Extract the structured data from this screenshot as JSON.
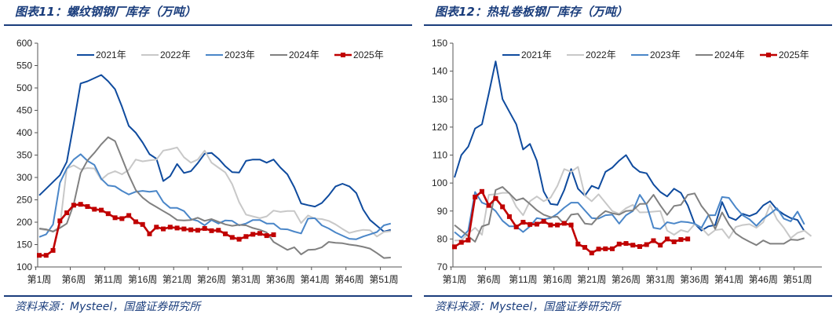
{
  "source": "资料来源：Mysteel，国盛证券研究所",
  "chart_data": [
    {
      "type": "line",
      "title": "图表11：螺纹钢钢厂库存（万吨）",
      "xlabel": "",
      "ylabel": "",
      "ylim": [
        100,
        600
      ],
      "yticks": [
        100,
        150,
        200,
        250,
        300,
        350,
        400,
        450,
        500,
        550,
        600
      ],
      "xtick_labels": [
        "第1周",
        "第6周",
        "第11周",
        "第16周",
        "第21周",
        "第26周",
        "第31周",
        "第36周",
        "第41周",
        "第46周",
        "第51周"
      ],
      "x_weeks": 53,
      "legend_position": "top",
      "series": [
        {
          "name": "2021年",
          "color": "#0f4b9e",
          "marker": false,
          "values": [
            260,
            275,
            290,
            305,
            335,
            420,
            510,
            515,
            522,
            529,
            515,
            497,
            458,
            415,
            400,
            378,
            352,
            342,
            292,
            303,
            330,
            310,
            314,
            332,
            353,
            355,
            342,
            325,
            312,
            311,
            337,
            340,
            340,
            333,
            340,
            322,
            307,
            278,
            242,
            238,
            235,
            243,
            260,
            280,
            286,
            280,
            265,
            228,
            205,
            192,
            179,
            183
          ]
        },
        {
          "name": "2022年",
          "color": "#c8c8c8",
          "marker": false,
          "values": [
            185,
            182,
            180,
            190,
            320,
            327,
            318,
            321,
            320,
            295,
            308,
            314,
            307,
            317,
            340,
            336,
            338,
            340,
            360,
            363,
            367,
            345,
            333,
            340,
            360,
            333,
            322,
            311,
            285,
            245,
            217,
            213,
            209,
            213,
            226,
            223,
            225,
            225,
            198,
            215,
            208,
            207,
            203,
            195,
            185,
            176,
            180,
            183,
            182,
            168,
            178,
            180
          ]
        },
        {
          "name": "2023年",
          "color": "#4a86c8",
          "marker": false,
          "values": [
            167,
            173,
            195,
            288,
            320,
            340,
            352,
            337,
            328,
            297,
            282,
            280,
            270,
            262,
            268,
            270,
            268,
            270,
            245,
            232,
            232,
            225,
            207,
            203,
            193,
            205,
            197,
            204,
            203,
            193,
            197,
            205,
            205,
            197,
            197,
            185,
            184,
            179,
            175,
            208,
            209,
            193,
            186,
            177,
            170,
            163,
            162,
            168,
            173,
            178,
            193,
            197
          ]
        },
        {
          "name": "2024年",
          "color": "#808080",
          "marker": false,
          "values": [
            186,
            184,
            179,
            187,
            197,
            240,
            310,
            338,
            355,
            374,
            390,
            381,
            343,
            305,
            272,
            255,
            243,
            234,
            225,
            216,
            205,
            204,
            205,
            210,
            203,
            207,
            201,
            195,
            192,
            194,
            193,
            187,
            183,
            177,
            156,
            147,
            138,
            144,
            128,
            138,
            139,
            144,
            156,
            154,
            153,
            150,
            148,
            145,
            141,
            131,
            120,
            121
          ]
        },
        {
          "name": "2025年",
          "color": "#c00000",
          "marker": true,
          "values": [
            126,
            126,
            137,
            203,
            221,
            238,
            240,
            235,
            229,
            227,
            219,
            210,
            208,
            215,
            201,
            195,
            174,
            189,
            185,
            189,
            187,
            185,
            183,
            182,
            186,
            181,
            182,
            174,
            166,
            162,
            168,
            173,
            175,
            170,
            172
          ]
        }
      ]
    },
    {
      "type": "line",
      "title": "图表12：热轧卷板钢厂库存（万吨）",
      "xlabel": "",
      "ylabel": "",
      "ylim": [
        70,
        150
      ],
      "yticks": [
        70,
        80,
        90,
        100,
        110,
        120,
        130,
        140,
        150
      ],
      "xtick_labels": [
        "第1周",
        "第6周",
        "第11周",
        "第16周",
        "第21周",
        "第26周",
        "第31周",
        "第36周",
        "第41周",
        "第46周",
        "第51周"
      ],
      "x_weeks": 53,
      "legend_position": "top",
      "series": [
        {
          "name": "2021年",
          "color": "#0f4b9e",
          "marker": false,
          "values": [
            102,
            110,
            113,
            119.5,
            121,
            132,
            143.5,
            130,
            125.5,
            121,
            112,
            114,
            108,
            97,
            92.5,
            92.2,
            97.5,
            105,
            98,
            95.5,
            99,
            98,
            104,
            105.5,
            108,
            110,
            106,
            104,
            103.5,
            99.5,
            96.8,
            95.2,
            98,
            96.5,
            92,
            85.5,
            83,
            84.5,
            85,
            93.2,
            87.8,
            86.8,
            89,
            88.2,
            89.2,
            92,
            93.5,
            90.5,
            88.8,
            87.5,
            86.8,
            82.8
          ]
        },
        {
          "name": "2022年",
          "color": "#c8c8c8",
          "marker": false,
          "values": [
            79.5,
            79.5,
            82,
            84,
            81.5,
            95.8,
            96,
            96.5,
            96.5,
            91.5,
            88.5,
            93.5,
            95.2,
            93.5,
            94.8,
            99,
            105,
            104,
            105.8,
            95.5,
            93.5,
            96,
            93,
            90,
            89,
            91,
            92.2,
            89.5,
            89.6,
            89.8,
            90,
            83,
            81.5,
            83.2,
            82.5,
            85.3,
            84,
            81.3,
            83.2,
            83.5,
            80.3,
            84.3,
            85,
            85.3,
            84,
            86,
            92.2,
            87,
            84,
            80.3,
            82.2,
            83,
            81
          ]
        },
        {
          "name": "2023年",
          "color": "#4a86c8",
          "marker": false,
          "values": [
            82.5,
            80.5,
            83,
            96.8,
            93,
            92,
            90,
            86.5,
            84.5,
            84.5,
            82.5,
            84.5,
            87.5,
            87,
            87.5,
            89,
            91.2,
            93,
            93,
            90.2,
            87.5,
            87.3,
            88.5,
            88.7,
            85.5,
            88.5,
            90,
            95.8,
            92.2,
            84,
            83.6,
            86,
            85.5,
            86.2,
            86,
            85.5,
            84,
            88.5,
            88.5,
            95,
            94.7,
            91.3,
            88.5,
            87,
            84.7,
            87.3,
            89,
            91,
            87.3,
            86.3,
            89.8,
            85.2
          ]
        },
        {
          "name": "2024年",
          "color": "#808080",
          "marker": false,
          "values": [
            85,
            83,
            81,
            79,
            84.5,
            85.3,
            97.5,
            98.6,
            96.3,
            93.8,
            94.6,
            92.5,
            90.3,
            88.7,
            87.8,
            88,
            85.3,
            88.7,
            89,
            85.5,
            85.2,
            88,
            90,
            89.2,
            88.7,
            90,
            90.2,
            92.5,
            92.6,
            95.8,
            92,
            88.6,
            91.8,
            92.2,
            95.8,
            96.3,
            91.8,
            88.7,
            83.6,
            89.5,
            85.2,
            82,
            80.3,
            79,
            77.8,
            79.5,
            78.3,
            78.3,
            78.3,
            79.8,
            79.6,
            80.3
          ]
        },
        {
          "name": "2025年",
          "color": "#c00000",
          "marker": true,
          "values": [
            77.2,
            78.8,
            79.6,
            95,
            97,
            92,
            94.5,
            91.5,
            88,
            84.3,
            86,
            85.2,
            85.3,
            86.3,
            85,
            85,
            85.6,
            85,
            78.2,
            77,
            75,
            76.4,
            76.5,
            76.5,
            78.2,
            78.4,
            77.8,
            77.3,
            78,
            79.4,
            77.8,
            80,
            79,
            79.8,
            80
          ]
        }
      ]
    }
  ]
}
